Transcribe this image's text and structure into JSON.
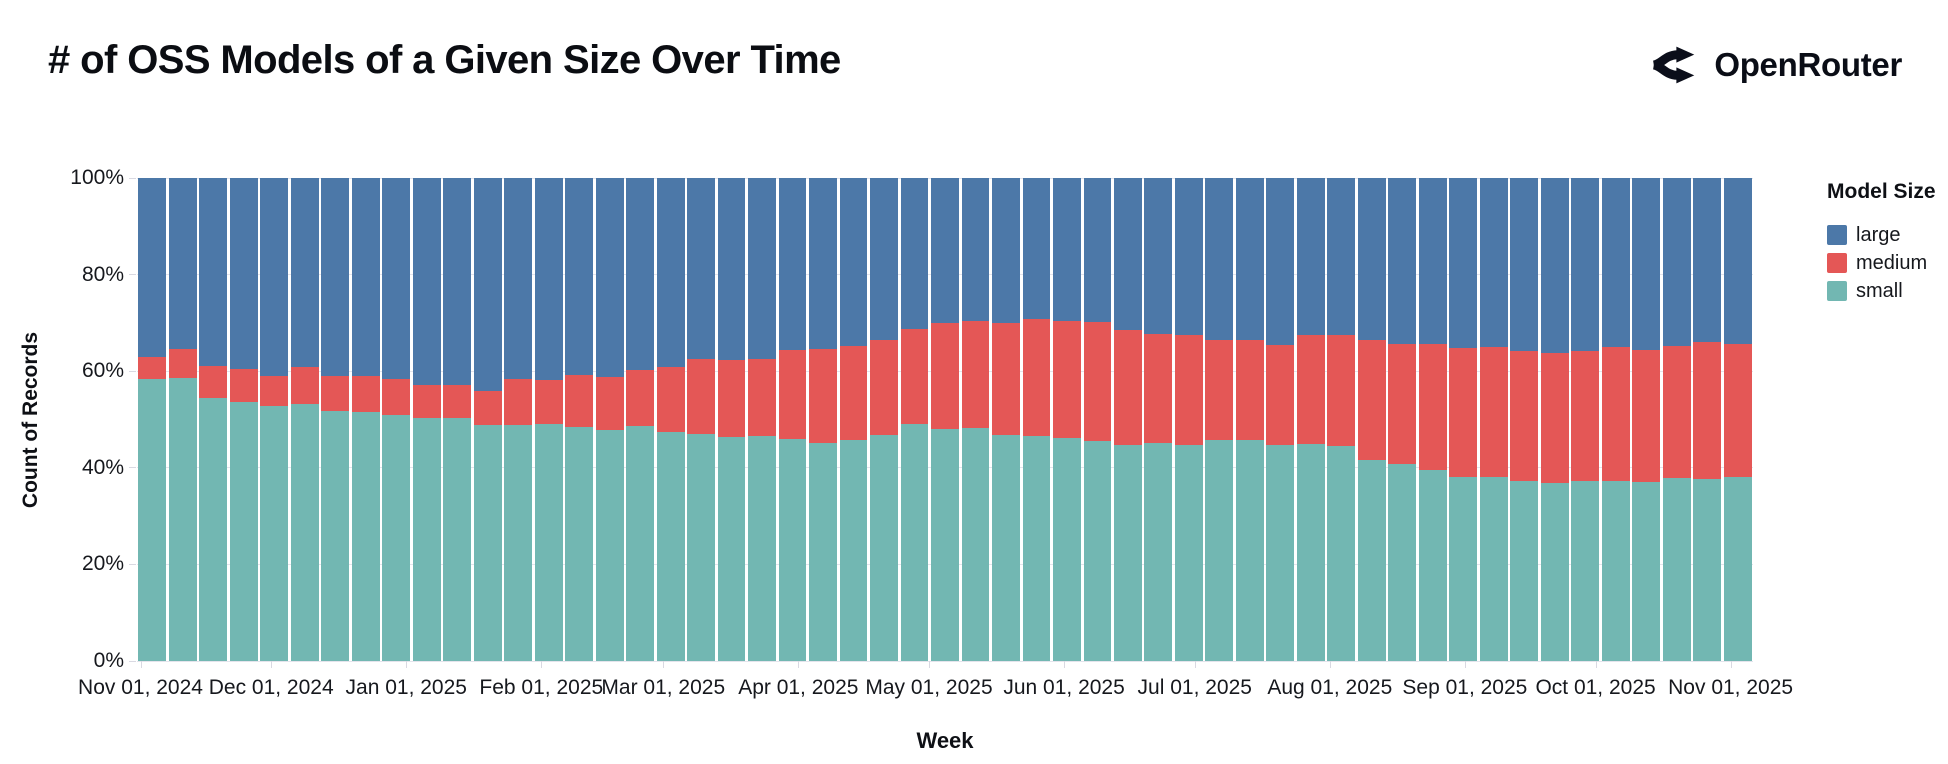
{
  "page": {
    "title": "# of OSS Models of a Given Size Over Time"
  },
  "brand": {
    "name": "OpenRouter",
    "icon": "openrouter-split-arrow-icon"
  },
  "chart_data": {
    "type": "bar",
    "variant": "stacked-normalized-100pct",
    "title": "# of OSS Models of a Given Size Over Time",
    "xlabel": "Week",
    "ylabel": "Count of Records",
    "grid": true,
    "background": "#ffffff",
    "y_axis": {
      "ticks": [
        "0%",
        "20%",
        "40%",
        "60%",
        "80%",
        "100%"
      ],
      "range": [
        0,
        100
      ]
    },
    "x_axis": {
      "tick_labels": [
        "Nov 01, 2024",
        "Dec 01, 2024",
        "Jan 01, 2025",
        "Feb 01, 2025",
        "Mar 01, 2025",
        "Apr 01, 2025",
        "May 01, 2025",
        "Jun 01, 2025",
        "Jul 01, 2025",
        "Aug 01, 2025",
        "Sep 01, 2025",
        "Oct 01, 2025",
        "Nov 01, 2025"
      ]
    },
    "legend": {
      "title": "Model Size",
      "position": "right",
      "entries": [
        {
          "label": "large",
          "color": "#4c78a8"
        },
        {
          "label": "medium",
          "color": "#e45756"
        },
        {
          "label": "small",
          "color": "#72b7b2"
        }
      ]
    },
    "weeks": 53,
    "units": "percent of weekly records",
    "series": [
      {
        "name": "small",
        "color": "#72b7b2",
        "values": [
          58.3,
          58.6,
          54.4,
          53.6,
          52.8,
          53.3,
          51.7,
          51.5,
          51.0,
          50.3,
          50.3,
          48.8,
          48.8,
          49.0,
          48.4,
          47.8,
          48.7,
          47.4,
          47.0,
          46.4,
          46.6,
          45.9,
          45.1,
          45.7,
          46.7,
          49.0,
          48.0,
          48.3,
          46.8,
          46.6,
          46.1,
          45.6,
          44.8,
          45.1,
          44.8,
          45.8,
          45.7,
          44.7,
          44.9,
          44.6,
          41.6,
          40.7,
          39.6,
          38.2,
          38.2,
          37.3,
          36.9,
          37.3,
          37.3,
          37.1,
          37.8,
          37.6,
          38.2
        ]
      },
      {
        "name": "medium",
        "color": "#e45756",
        "values": [
          4.6,
          6.0,
          6.6,
          6.8,
          6.2,
          7.5,
          7.4,
          7.6,
          7.3,
          6.9,
          6.9,
          7.1,
          9.5,
          9.1,
          10.9,
          11.0,
          11.5,
          13.4,
          15.5,
          15.9,
          15.9,
          18.5,
          19.5,
          19.5,
          19.7,
          19.8,
          22.0,
          22.2,
          23.2,
          24.3,
          24.4,
          24.6,
          23.8,
          22.6,
          22.6,
          20.6,
          20.8,
          20.7,
          22.5,
          23.0,
          24.8,
          25.0,
          26.1,
          26.7,
          26.8,
          26.9,
          26.8,
          26.8,
          27.8,
          27.3,
          27.4,
          28.5,
          27.5
        ]
      },
      {
        "name": "large",
        "color": "#4c78a8",
        "values": [
          37.1,
          35.4,
          39.0,
          39.6,
          41.0,
          39.2,
          40.9,
          40.9,
          41.7,
          42.8,
          42.8,
          44.1,
          41.7,
          41.9,
          40.7,
          41.2,
          39.8,
          39.2,
          37.5,
          37.7,
          37.5,
          35.6,
          35.4,
          34.8,
          33.6,
          31.2,
          30.0,
          29.5,
          30.0,
          29.1,
          29.5,
          29.8,
          31.4,
          32.3,
          32.6,
          33.6,
          33.5,
          34.6,
          32.6,
          32.4,
          33.6,
          34.3,
          34.3,
          35.1,
          35.0,
          35.8,
          36.3,
          35.9,
          34.9,
          35.6,
          34.8,
          33.9,
          34.3
        ]
      }
    ]
  }
}
